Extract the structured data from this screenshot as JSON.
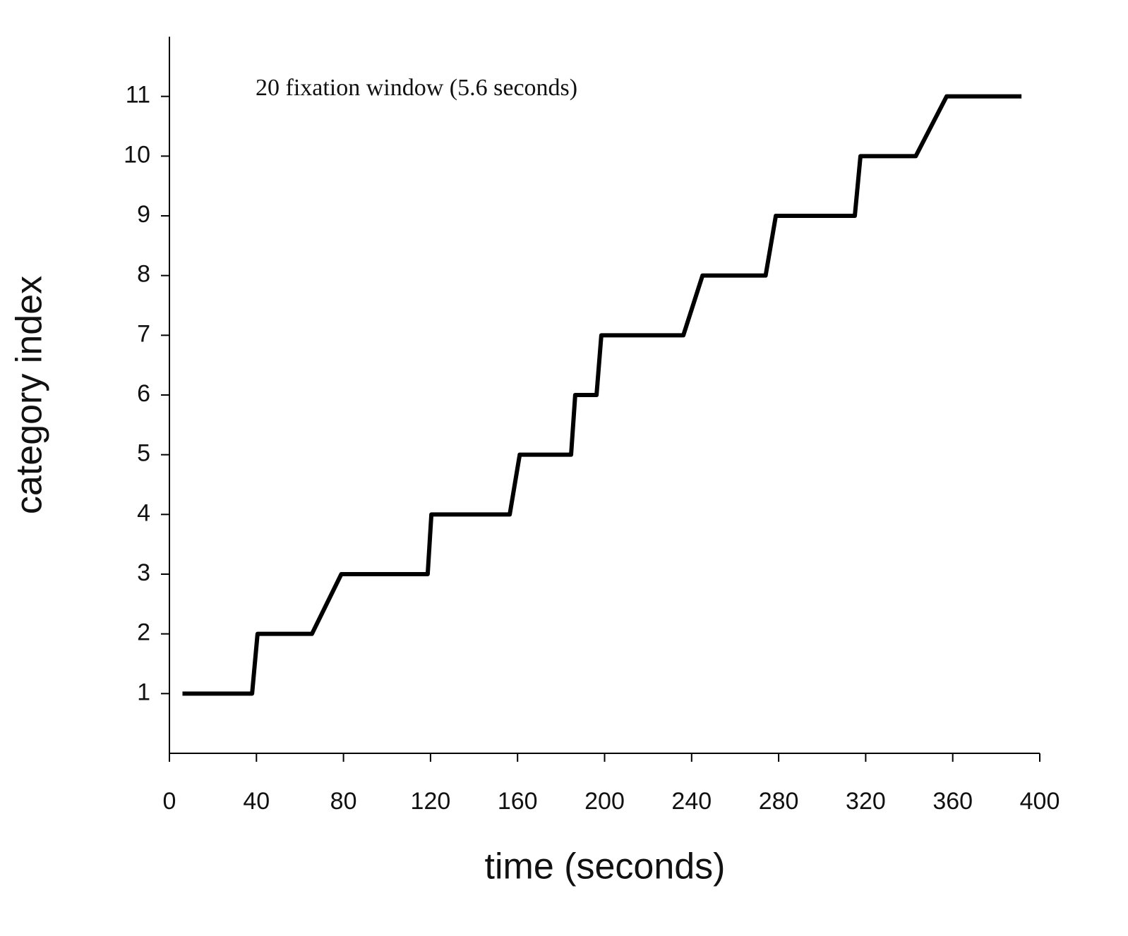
{
  "chart_data": {
    "type": "line",
    "annotation": "20 fixation window (5.6 seconds)",
    "xlabel": "time (seconds)",
    "ylabel": "category index",
    "x": [
      6,
      38,
      40.5,
      65.5,
      79,
      118.7,
      120.4,
      156.4,
      161,
      184.6,
      186.5,
      196.3,
      198.5,
      236.2,
      245,
      274,
      278.7,
      315,
      317.6,
      343,
      357.2,
      391.6
    ],
    "series": [
      {
        "color": "#000000",
        "values": [
          1,
          1,
          2,
          2,
          3,
          3,
          4,
          4,
          5,
          5,
          6,
          6,
          7,
          7,
          8,
          8,
          9,
          9,
          10,
          10,
          11,
          11
        ]
      }
    ],
    "xlim": [
      0,
      400
    ],
    "xticks": [
      0,
      40,
      80,
      120,
      160,
      200,
      240,
      280,
      320,
      360,
      400
    ],
    "ylim": [
      0,
      12
    ],
    "yticks": [
      1,
      2,
      3,
      4,
      5,
      6,
      7,
      8,
      9,
      10,
      11
    ],
    "grid": false
  }
}
